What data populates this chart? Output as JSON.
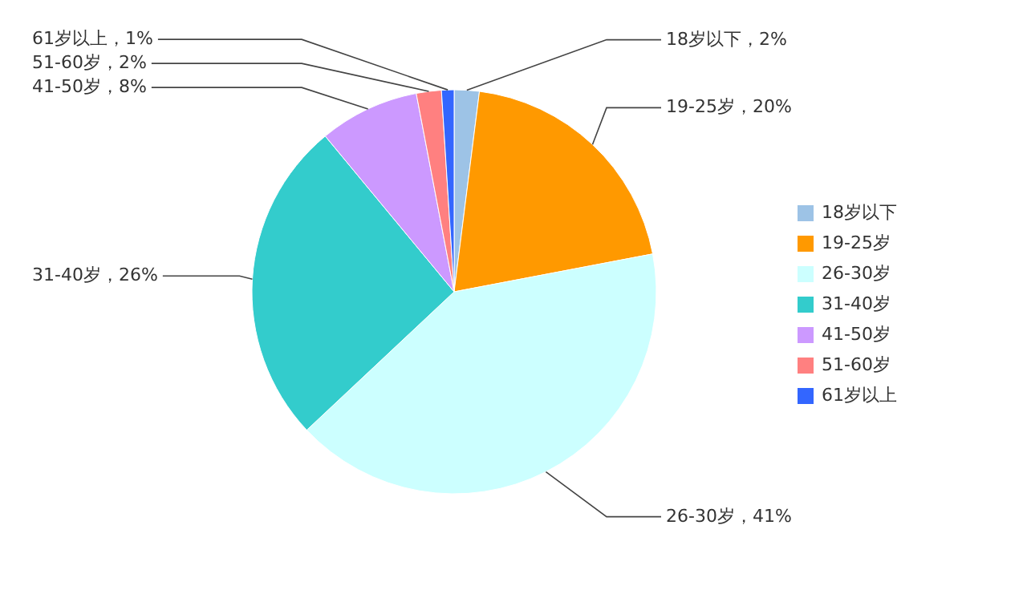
{
  "chart_data": {
    "type": "pie",
    "categories": [
      "18岁以下",
      "19-25岁",
      "26-30岁",
      "31-40岁",
      "41-50岁",
      "51-60岁",
      "61岁以上"
    ],
    "values": [
      2,
      20,
      41,
      26,
      8,
      2,
      1
    ],
    "colors": [
      "#9dc3e6",
      "#ff9900",
      "#ccffff",
      "#33cccc",
      "#cc99ff",
      "#ff8080",
      "#3366ff"
    ],
    "value_labels": [
      "18岁以下，2%",
      "19-25岁，20%",
      "26-30岁，41%",
      "31-40岁，26%",
      "41-50岁，8%",
      "51-60岁，2%",
      "61岁以上，1%"
    ],
    "legend": "right"
  }
}
